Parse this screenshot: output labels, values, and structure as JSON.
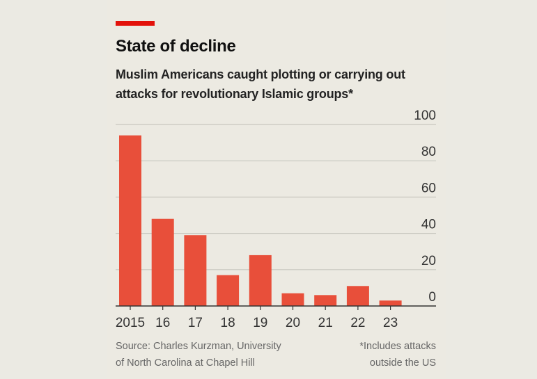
{
  "title": "State of decline",
  "subtitle": "Muslim Americans caught plotting or carrying out attacks for revolutionary Islamic groups*",
  "source": "Source: Charles Kurzman, University of North Carolina at Chapel Hill",
  "source_lines": [
    "Source: Charles Kurzman, University",
    "of North Carolina at Chapel Hill"
  ],
  "footnote_lines": [
    "*Includes attacks",
    "outside the US"
  ],
  "colors": {
    "bar": "#e84f3a",
    "accent": "#e3120b"
  },
  "chart_data": {
    "type": "bar",
    "title": "State of decline",
    "categories": [
      "2015",
      "16",
      "17",
      "18",
      "19",
      "20",
      "21",
      "22",
      "23"
    ],
    "values": [
      94,
      48,
      39,
      17,
      28,
      7,
      6,
      11,
      3
    ],
    "yticks": [
      "0",
      "20",
      "40",
      "60",
      "80",
      "100"
    ],
    "ylim": [
      0,
      100
    ],
    "xlabel": "",
    "ylabel": "",
    "grid": true
  }
}
